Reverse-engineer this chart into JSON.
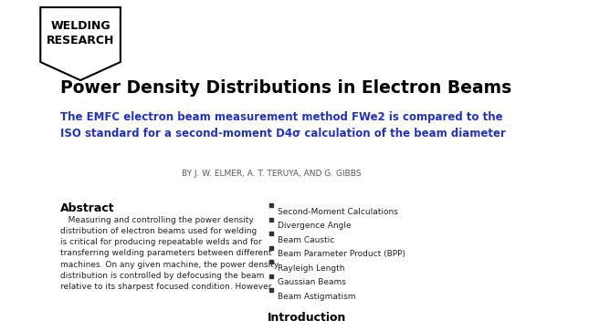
{
  "title": "Power Density Distributions in Electron Beams",
  "subtitle": "The EMFC electron beam measurement method FWe2 is compared to the\nISO standard for a second-moment D4σ calculation of the beam diameter",
  "authors": "BY J. W. ELMER, A. T. TERUYA, AND G. GIBBS",
  "badge_line1": "WELDING",
  "badge_line2": "RESEARCH",
  "abstract_title": "Abstract",
  "abstract_text": "   Measuring and controlling the power density\ndistribution of electron beams used for welding\nis critical for producing repeatable welds and for\ntransferring welding parameters between different\nmachines. On any given machine, the power density\ndistribution is controlled by defocusing the beam\nrelative to its sharpest focused condition. However,",
  "bullet_items": [
    "Second-Moment Calculations",
    "Divergence Angle",
    "Beam Caustic",
    "Beam Parameter Product (BPP)",
    "Rayleigh Length",
    "Gaussian Beams",
    "Beam Astigmatism"
  ],
  "intro_title": "Introduction",
  "bg_color": "#ffffff",
  "title_color": "#000000",
  "subtitle_color": "#2233bb",
  "authors_color": "#555555",
  "abstract_text_color": "#222222",
  "bullet_color": "#222222",
  "badge_bg": "#ffffff",
  "badge_border": "#000000"
}
